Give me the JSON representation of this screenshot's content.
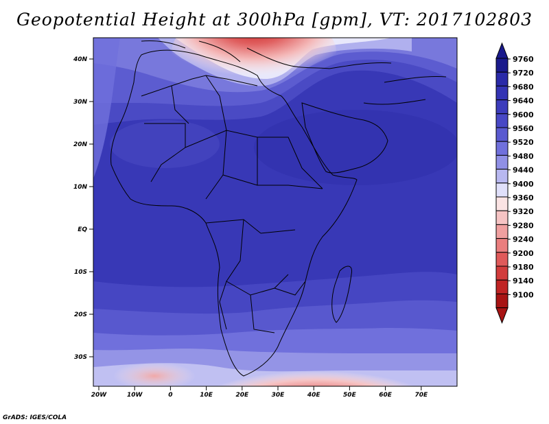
{
  "title": "Geopotential Height at 300hPa [gpm], VT: 2017102803",
  "credit": "GrADS: IGES/COLA",
  "lat_ticks": [
    "40N",
    "30N",
    "20N",
    "10N",
    "EQ",
    "10S",
    "20S",
    "30S"
  ],
  "lon_ticks": [
    "20W",
    "10W",
    "0",
    "10E",
    "20E",
    "30E",
    "40E",
    "50E",
    "60E",
    "70E"
  ],
  "colorbar": {
    "levels": [
      "9760",
      "9720",
      "9680",
      "9640",
      "9600",
      "9560",
      "9520",
      "9480",
      "9440",
      "9400",
      "9360",
      "9320",
      "9280",
      "9240",
      "9200",
      "9180",
      "9140",
      "9100"
    ],
    "colors": [
      "#1a1a8c",
      "#2a2aa8",
      "#3434b4",
      "#3c3cbc",
      "#4848c6",
      "#5a5ad0",
      "#7070dc",
      "#9090e6",
      "#b8b8f0",
      "#e0e0fa",
      "#fbe4e4",
      "#f6c4c4",
      "#f0a0a0",
      "#ea7e7e",
      "#e05a5a",
      "#d23c3c",
      "#c02424",
      "#a81414"
    ]
  }
}
